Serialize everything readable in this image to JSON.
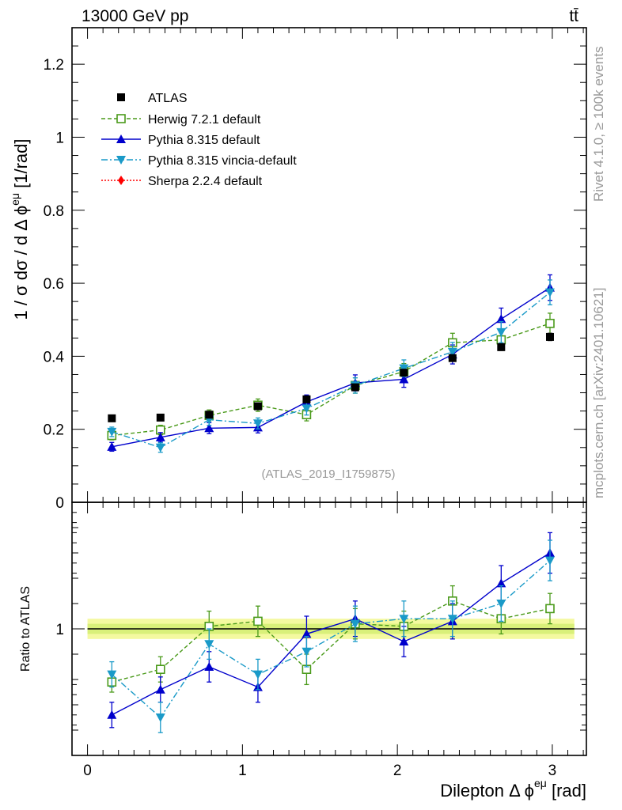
{
  "header": {
    "energy_label": "13000 GeV pp",
    "process_label": "tt̄"
  },
  "side_text": {
    "rivet": "Rivet 4.1.0, ≥ 100k events",
    "mcplots": "mcplots.cern.ch [arXiv:2401.10621]"
  },
  "watermark": "(ATLAS_2019_I1759875)",
  "axes": {
    "main_ylabel": "1 / σ  dσ / d Δ ϕ^eμ [1/rad]",
    "main_ylabel_parts": {
      "prefix": "1 / σ  dσ / d Δ ϕ",
      "sup": "eμ",
      "suffix": " [1/rad]"
    },
    "ratio_ylabel": "Ratio to ATLAS",
    "xlabel": "Dilepton Δ ϕ^eμ [rad]",
    "xlabel_parts": {
      "prefix": "Dilepton Δ ϕ",
      "sup": "eμ",
      "suffix": " [rad]"
    },
    "x_ticks": [
      "0",
      "1",
      "2",
      "3"
    ],
    "main_y_ticks": [
      "0",
      "0.2",
      "0.4",
      "0.6",
      "0.8",
      "1",
      "1.2"
    ],
    "ratio_y_ticks": [
      "1"
    ]
  },
  "legend": [
    {
      "label": "ATLAS",
      "color": "#000000",
      "marker": "square-filled",
      "line": "none"
    },
    {
      "label": "Herwig 7.2.1 default",
      "color": "#4a9a1a",
      "marker": "square-open",
      "line": "dashed"
    },
    {
      "label": "Pythia 8.315 default",
      "color": "#0000cc",
      "marker": "triangle-up",
      "line": "solid"
    },
    {
      "label": "Pythia 8.315 vincia-default",
      "color": "#1a9ac8",
      "marker": "triangle-down",
      "line": "dashdot"
    },
    {
      "label": "Sherpa 2.2.4 default",
      "color": "#ff0000",
      "marker": "diamond",
      "line": "dotted"
    }
  ],
  "chart_data": [
    {
      "type": "scatter",
      "title": "",
      "xlabel": "Dilepton Δ ϕ^eμ [rad]",
      "ylabel": "1 / σ dσ / d Δ ϕ^eμ [1/rad]",
      "xlim": [
        -0.1,
        3.22
      ],
      "ylim": [
        0,
        1.3
      ],
      "x": [
        0.157,
        0.471,
        0.785,
        1.1,
        1.414,
        1.728,
        2.042,
        2.356,
        2.67,
        2.985
      ],
      "series": [
        {
          "name": "ATLAS",
          "values": [
            0.23,
            0.232,
            0.24,
            0.263,
            0.282,
            0.315,
            0.355,
            0.395,
            0.425,
            0.453
          ],
          "errors": [
            0.005,
            0.005,
            0.005,
            0.006,
            0.006,
            0.007,
            0.008,
            0.009,
            0.009,
            0.01
          ]
        },
        {
          "name": "Herwig 7.2.1 default",
          "values": [
            0.183,
            0.198,
            0.238,
            0.266,
            0.24,
            0.32,
            0.358,
            0.437,
            0.445,
            0.49
          ],
          "errors": [
            0.012,
            0.013,
            0.015,
            0.017,
            0.017,
            0.021,
            0.022,
            0.026,
            0.026,
            0.028
          ]
        },
        {
          "name": "Pythia 8.315 default",
          "values": [
            0.152,
            0.178,
            0.203,
            0.205,
            0.275,
            0.327,
            0.337,
            0.405,
            0.502,
            0.588
          ],
          "errors": [
            0.012,
            0.013,
            0.015,
            0.015,
            0.019,
            0.022,
            0.022,
            0.026,
            0.03,
            0.035
          ]
        },
        {
          "name": "Pythia 8.315 vincia-default",
          "values": [
            0.193,
            0.15,
            0.226,
            0.216,
            0.257,
            0.32,
            0.367,
            0.412,
            0.466,
            0.575
          ],
          "errors": [
            0.013,
            0.013,
            0.015,
            0.015,
            0.018,
            0.021,
            0.023,
            0.026,
            0.029,
            0.034
          ]
        }
      ]
    },
    {
      "type": "scatter",
      "title": "",
      "ylabel": "Ratio to ATLAS",
      "xlim": [
        -0.1,
        3.22
      ],
      "ylim": [
        0.5,
        1.5
      ],
      "x": [
        0.157,
        0.471,
        0.785,
        1.1,
        1.414,
        1.728,
        2.042,
        2.356,
        2.67,
        2.985
      ],
      "series": [
        {
          "name": "Herwig 7.2.1 default",
          "values": [
            0.79,
            0.84,
            1.01,
            1.03,
            0.84,
            1.02,
            1.01,
            1.11,
            1.04,
            1.08
          ],
          "errors": [
            0.04,
            0.05,
            0.06,
            0.06,
            0.06,
            0.06,
            0.06,
            0.06,
            0.06,
            0.06
          ]
        },
        {
          "name": "Pythia 8.315 default",
          "values": [
            0.66,
            0.76,
            0.85,
            0.77,
            0.98,
            1.04,
            0.95,
            1.03,
            1.18,
            1.3
          ],
          "errors": [
            0.05,
            0.05,
            0.06,
            0.06,
            0.07,
            0.07,
            0.06,
            0.07,
            0.07,
            0.08
          ]
        },
        {
          "name": "Pythia 8.315 vincia-default",
          "values": [
            0.82,
            0.65,
            0.94,
            0.82,
            0.91,
            1.02,
            1.04,
            1.04,
            1.1,
            1.27
          ],
          "errors": [
            0.05,
            0.06,
            0.06,
            0.06,
            0.06,
            0.07,
            0.07,
            0.07,
            0.07,
            0.08
          ]
        }
      ],
      "reference_band": {
        "center": 1.0,
        "inner": 0.02,
        "outer": 0.04
      }
    }
  ]
}
